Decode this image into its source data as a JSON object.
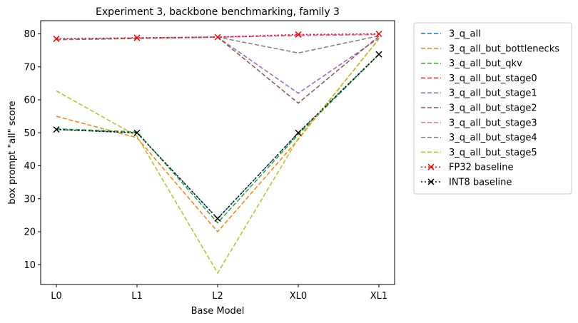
{
  "chart_data": {
    "type": "line",
    "title": "Experiment 3, backbone benchmarking, family 3",
    "xlabel": "Base Model",
    "ylabel": "box prompt \"all\" score",
    "categories": [
      "L0",
      "L1",
      "L2",
      "XL0",
      "XL1"
    ],
    "ylim": [
      4,
      84
    ],
    "yticks": [
      10,
      20,
      30,
      40,
      50,
      60,
      70,
      80
    ],
    "grid": false,
    "legend_position": "outside-right",
    "series": [
      {
        "name": "3_q_all",
        "color": "#1f77b4",
        "style": "dashed",
        "marker": "none",
        "values": [
          51.0,
          50.0,
          24.0,
          50.0,
          73.8
        ]
      },
      {
        "name": "3_q_all_but_bottlenecks",
        "color": "#ff7f0e",
        "style": "dashed",
        "marker": "none",
        "values": [
          55.0,
          48.5,
          20.0,
          48.0,
          78.5
        ]
      },
      {
        "name": "3_q_all_but_qkv",
        "color": "#2ca02c",
        "style": "dashed",
        "marker": "none",
        "values": [
          51.2,
          50.3,
          22.7,
          49.5,
          73.7
        ]
      },
      {
        "name": "3_q_all_but_stage0",
        "color": "#d62728",
        "style": "dashed",
        "marker": "none",
        "values": [
          78.3,
          78.7,
          79.0,
          79.5,
          79.8
        ]
      },
      {
        "name": "3_q_all_but_stage1",
        "color": "#9467bd",
        "style": "dashed",
        "marker": "none",
        "values": [
          78.3,
          78.7,
          79.0,
          62.0,
          78.7
        ]
      },
      {
        "name": "3_q_all_but_stage2",
        "color": "#8c564b",
        "style": "dashed",
        "marker": "none",
        "values": [
          78.2,
          78.6,
          79.0,
          59.0,
          79.3
        ]
      },
      {
        "name": "3_q_all_but_stage3",
        "color": "#e377c2",
        "style": "dashed",
        "marker": "none",
        "values": [
          78.4,
          78.8,
          79.1,
          79.6,
          79.9
        ]
      },
      {
        "name": "3_q_all_but_stage4",
        "color": "#7f7f7f",
        "style": "dashed",
        "marker": "none",
        "values": [
          78.3,
          78.7,
          79.0,
          74.2,
          79.4
        ]
      },
      {
        "name": "3_q_all_but_stage5",
        "color": "#bcbd22",
        "style": "dashed",
        "marker": "none",
        "values": [
          62.7,
          49.0,
          7.5,
          48.3,
          78.4
        ]
      },
      {
        "name": "FP32 baseline",
        "color": "#ff0000",
        "style": "dotted",
        "marker": "x",
        "values": [
          78.5,
          78.8,
          79.0,
          79.8,
          80.0
        ]
      },
      {
        "name": "INT8 baseline",
        "color": "#000000",
        "style": "dotted",
        "marker": "x",
        "values": [
          51.0,
          50.0,
          24.0,
          50.0,
          73.8
        ]
      }
    ]
  }
}
